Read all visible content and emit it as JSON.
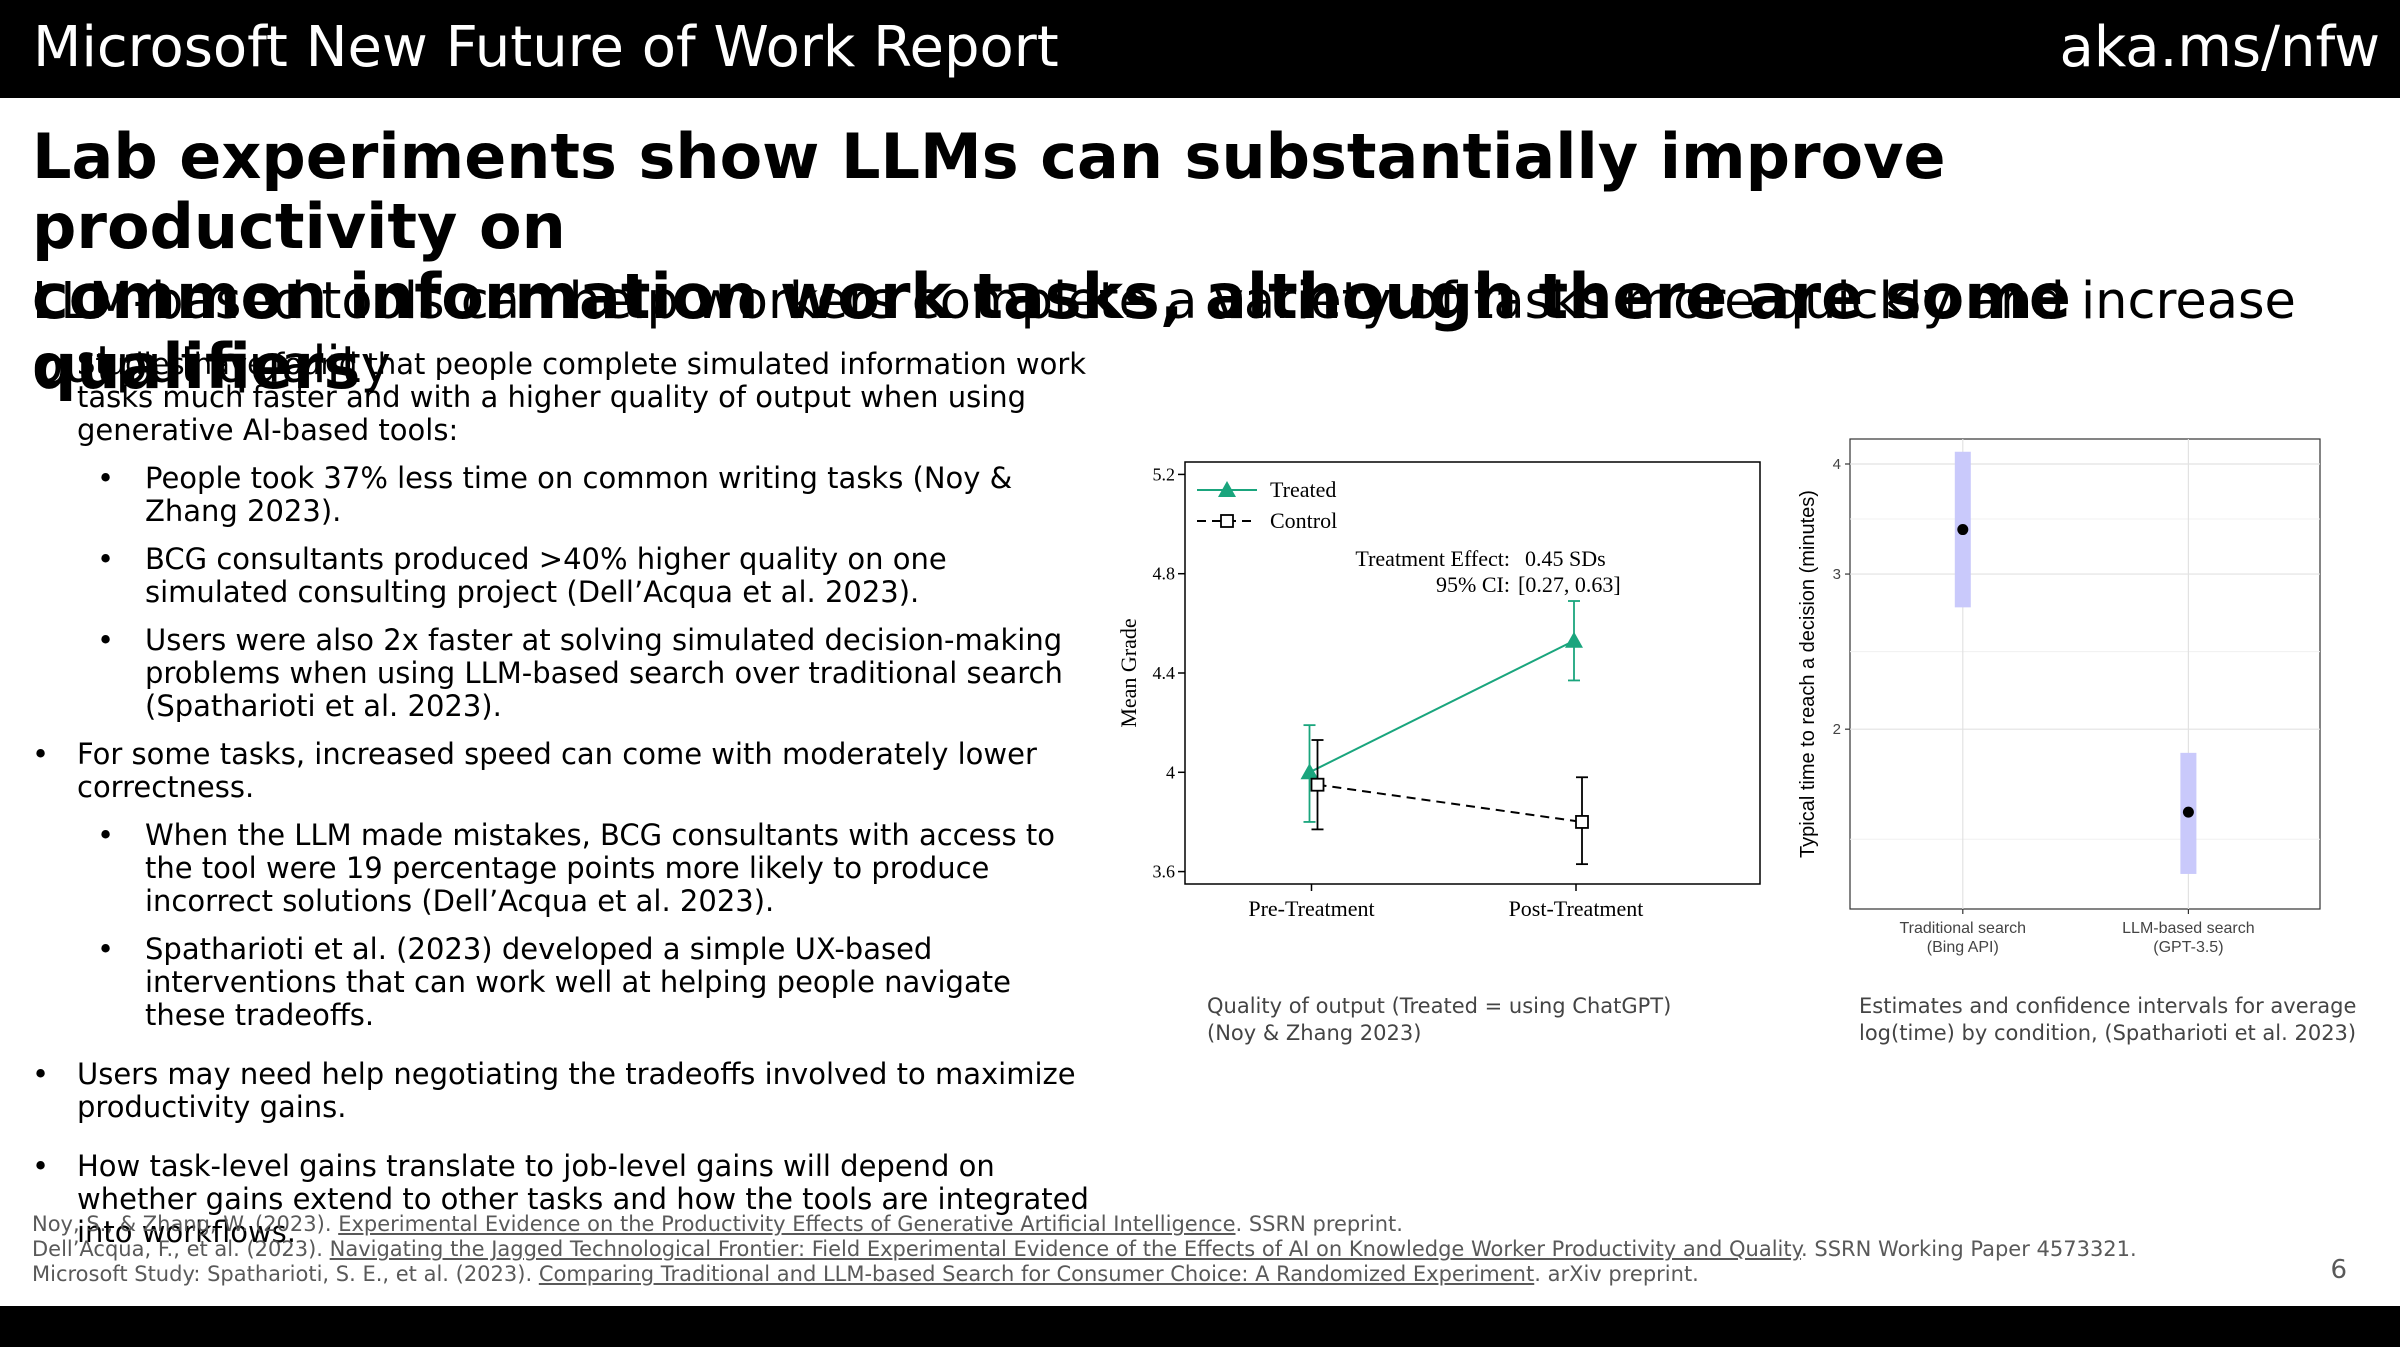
{
  "header": {
    "brand": "Microsoft New Future of Work Report",
    "link": "aka.ms/nfw"
  },
  "title_line1": "Lab experiments show LLMs can substantially improve productivity on",
  "title_line2": "common information work tasks, although there are some qualifiers",
  "subtitle": "LLM-based tools can help workers complete a variety of tasks more quickly and increase output quality",
  "bullets": [
    {
      "text": "Studies have found that people complete simulated information work tasks much faster and with a higher quality of output when using generative AI-based tools:",
      "sub": [
        "People took 37% less time on common writing tasks (Noy & Zhang 2023).",
        "BCG consultants produced >40% higher quality on one simulated consulting project (Dell’Acqua et al. 2023).",
        "Users were also 2x faster at solving simulated decision-making problems when using LLM-based search over traditional search (Spatharioti et al. 2023)."
      ]
    },
    {
      "text": "For some tasks, increased speed can come with moderately lower correctness.",
      "sub": [
        "When the LLM made mistakes, BCG consultants with access to the tool were 19 percentage points more likely to produce incorrect solutions (Dell’Acqua et al. 2023).",
        "Spatharioti et al. (2023) developed a simple UX-based interventions that can work well at helping people navigate these tradeoffs."
      ]
    },
    {
      "text": "Users may need help negotiating the tradeoffs involved to maximize productivity gains.",
      "sub": []
    },
    {
      "text": "How task-level gains translate to job-level gains will depend on whether gains extend to other tasks and how the tools are integrated into workflows.",
      "sub": []
    }
  ],
  "chart_data": [
    {
      "type": "line",
      "categories": [
        "Pre-Treatment",
        "Post-Treatment"
      ],
      "ylabel": "Mean Grade",
      "yticks": [
        3.6,
        4,
        4.4,
        4.8,
        5.2
      ],
      "ylim": [
        3.55,
        5.25
      ],
      "series": [
        {
          "name": "Treated",
          "values": [
            4.0,
            4.53
          ],
          "ci_low": [
            3.8,
            4.37
          ],
          "ci_high": [
            4.19,
            4.69
          ],
          "color": "#1aa57d",
          "marker": "triangle",
          "dash": "solid"
        },
        {
          "name": "Control",
          "values": [
            3.95,
            3.8
          ],
          "ci_low": [
            3.77,
            3.63
          ],
          "ci_high": [
            4.13,
            3.98
          ],
          "color": "#000000",
          "marker": "square",
          "dash": "dashed"
        }
      ],
      "annotation": {
        "effect_label": "Treatment Effect:",
        "effect_value": "0.45 SDs",
        "ci_label": "95% CI:",
        "ci_value": "[0.27, 0.63]"
      },
      "legend": "top-left",
      "caption": [
        "Quality of output (Treated = using ChatGPT)",
        "(Noy & Zhang 2023)"
      ]
    },
    {
      "type": "scatter",
      "categories": [
        "Traditional search\n(Bing API)",
        "LLM-based search\n(GPT-3.5)"
      ],
      "ylabel": "Typical time to reach a decision (minutes)",
      "yticks": [
        2,
        3,
        4
      ],
      "ylim": [
        1.25,
        4.27
      ],
      "log_scale": true,
      "points": [
        {
          "value": 3.37,
          "ci_low": 2.75,
          "ci_high": 4.13
        },
        {
          "value": 1.61,
          "ci_low": 1.37,
          "ci_high": 1.88
        }
      ],
      "ci_color": "#c9c9fb",
      "grid": true,
      "caption": [
        "Estimates and confidence intervals for average",
        "log(time) by condition, (Spatharioti et al. 2023)"
      ]
    }
  ],
  "refs": [
    {
      "pre": "Noy, S., & Zhang, W. (2023). ",
      "link": "Experimental Evidence on the Productivity Effects of Generative Artificial Intelligence",
      "post": ". SSRN preprint."
    },
    {
      "pre": "Dell’Acqua, F., et al. (2023). ",
      "link": "Navigating the Jagged Technological Frontier: Field Experimental Evidence of the Effects of AI on Knowledge Worker Productivity and Quality",
      "post": ". SSRN Working Paper 4573321."
    },
    {
      "pre": "Microsoft Study: Spatharioti, S. E., et al. (2023). ",
      "link": "Comparing Traditional and LLM-based Search for Consumer Choice: A Randomized Experiment",
      "post": ". arXiv preprint."
    }
  ],
  "page_number": "6"
}
